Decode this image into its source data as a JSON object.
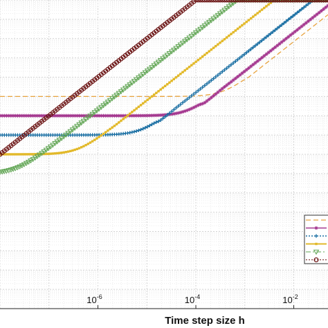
{
  "chart_data": {
    "type": "line",
    "xlabel": "Time step size h",
    "ylabel": "",
    "xscale": "log",
    "yscale": "log",
    "xlim": [
      1e-08,
      0.05
    ],
    "ylim": [
      1e-16,
      1
    ],
    "grid": true,
    "legend_position": "bottom-right",
    "x_ticks": [
      {
        "base": "10",
        "exp": "-6",
        "value": 1e-06
      },
      {
        "base": "10",
        "exp": "-4",
        "value": 0.0001
      },
      {
        "base": "10",
        "exp": "-2",
        "value": 0.01
      }
    ],
    "series": [
      {
        "color": "#e8a33d",
        "line": "dashed",
        "marker": "none",
        "plateau": 1e-05,
        "dip_x": 0.0015,
        "dip_y": 1e-08,
        "lead": 0.12,
        "width": 1.3
      },
      {
        "color": "#a4378f",
        "line": "solid",
        "marker": "star",
        "plateau": 1e-06,
        "dip_x": 0.0002,
        "dip_y": 1e-10,
        "lead": 0.07,
        "width": 1.4
      },
      {
        "color": "#1a6fa3",
        "line": "dotted",
        "marker": "plus",
        "plateau": 1e-07,
        "dip_x": 2.5e-05,
        "dip_y": 1e-11,
        "lead": 0.025,
        "width": 1.5
      },
      {
        "color": "#e2b92a",
        "line": "solid",
        "marker": "square",
        "plateau": 1e-08,
        "dip_x": 3e-06,
        "dip_y": 1e-12,
        "lead": 0.004,
        "width": 1.9
      },
      {
        "color": "#5fa452",
        "line": "dashdot",
        "marker": "triangle-down",
        "plateau": 1e-09,
        "dip_x": 4e-07,
        "dip_y": 1e-13,
        "lead": 0.0007,
        "width": 1.0
      },
      {
        "color": "#6b1414",
        "line": "dotted",
        "marker": "circle",
        "plateau": 0,
        "dip_x": 0,
        "dip_y": 0,
        "lead": 0.0001,
        "width": 1.0
      }
    ]
  }
}
